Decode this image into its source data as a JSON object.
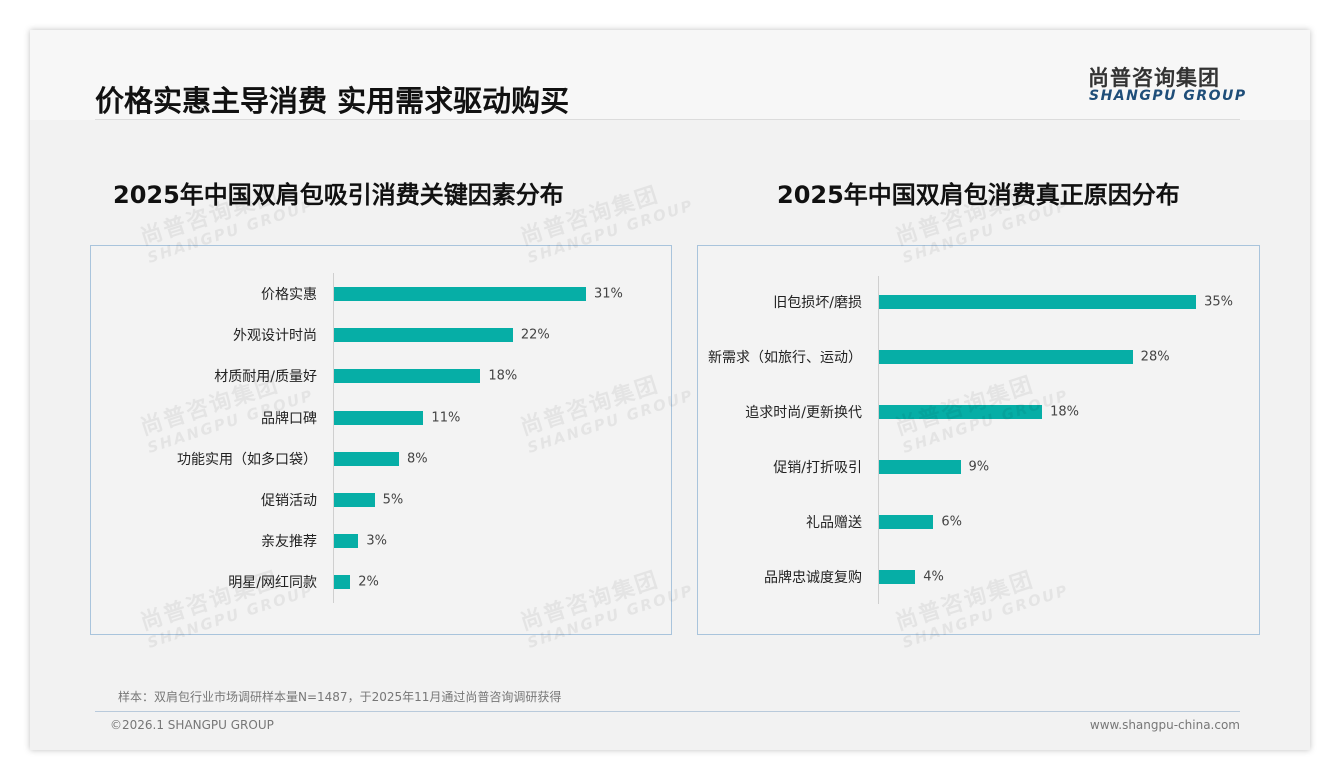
{
  "header": {
    "title": "价格实惠主导消费 实用需求驱动购买",
    "logo_cn": "尚普咨询集团",
    "logo_en": "SHANGPU GROUP"
  },
  "watermark": {
    "cn": "尚普咨询集团",
    "en": "SHANGPU GROUP"
  },
  "chart_data": [
    {
      "type": "bar",
      "orientation": "horizontal",
      "title": "2025年中国双肩包吸引消费关键因素分布",
      "categories": [
        "价格实惠",
        "外观设计时尚",
        "材质耐用/质量好",
        "品牌口碑",
        "功能实用（如多口袋）",
        "促销活动",
        "亲友推荐",
        "明星/网红同款"
      ],
      "values": [
        31,
        22,
        18,
        11,
        8,
        5,
        3,
        2
      ],
      "labels": [
        "31%",
        "22%",
        "18%",
        "11%",
        "8%",
        "5%",
        "3%",
        "2%"
      ],
      "unit": "%",
      "color": "#06aea6"
    },
    {
      "type": "bar",
      "orientation": "horizontal",
      "title": "2025年中国双肩包消费真正原因分布",
      "categories": [
        "旧包损坏/磨损",
        "新需求（如旅行、运动）",
        "追求时尚/更新换代",
        "促销/打折吸引",
        "礼品赠送",
        "品牌忠诚度复购"
      ],
      "values": [
        35,
        28,
        18,
        9,
        6,
        4
      ],
      "labels": [
        "35%",
        "28%",
        "18%",
        "9%",
        "6%",
        "4%"
      ],
      "unit": "%",
      "color": "#06aea6"
    }
  ],
  "footer": {
    "note": "样本：双肩包行业市场调研样本量N=1487，于2025年11月通过尚普咨询调研获得",
    "copyright": "©2026.1 SHANGPU GROUP",
    "url": "www.shangpu-china.com"
  }
}
